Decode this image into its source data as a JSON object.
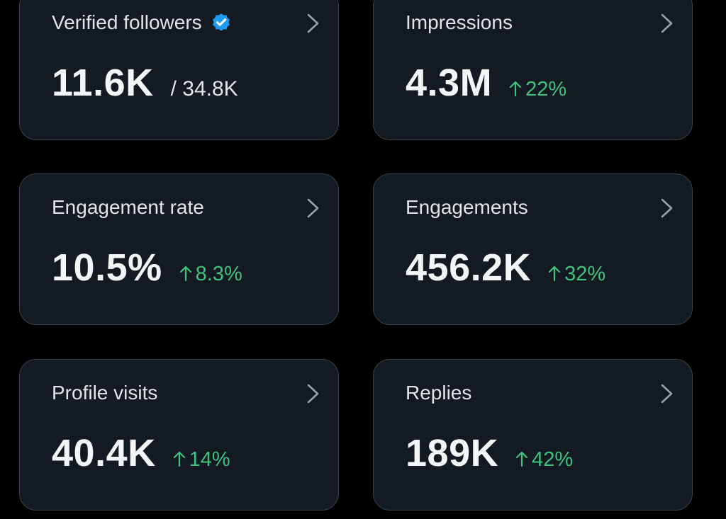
{
  "colors": {
    "background": "#000000",
    "card": "#141a21",
    "card_border": "#3a4148",
    "title_text": "#e2e4e6",
    "value_text": "#f4f5f6",
    "positive_delta": "#3fc17f",
    "verified_badge": "#1d9bf0"
  },
  "icons": {
    "card_chevron": "chevron-right-icon",
    "verified": "verified-badge-icon",
    "delta_arrow": "arrow-up-icon"
  },
  "cards": [
    {
      "title": "Verified followers",
      "value": "11.6K",
      "secondary": "/ 34.8K",
      "verified_badge": true
    },
    {
      "title": "Impressions",
      "value": "4.3M",
      "delta": "22%"
    },
    {
      "title": "Engagement rate",
      "value": "10.5%",
      "delta": "8.3%"
    },
    {
      "title": "Engagements",
      "value": "456.2K",
      "delta": "32%"
    },
    {
      "title": "Profile visits",
      "value": "40.4K",
      "delta": "14%"
    },
    {
      "title": "Replies",
      "value": "189K",
      "delta": "42%"
    }
  ]
}
